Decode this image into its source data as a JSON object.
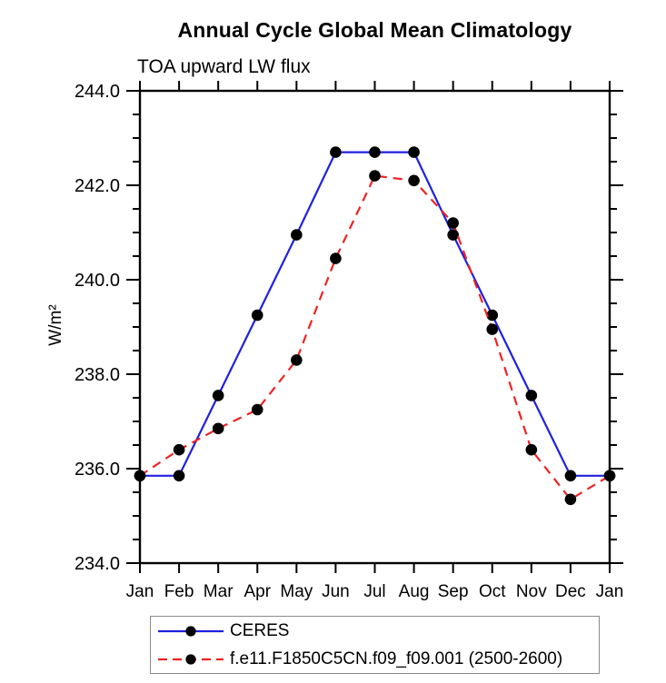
{
  "page": {
    "background": "#ffffff"
  },
  "chart_data": {
    "type": "line",
    "title": "Annual Cycle Global Mean Climatology",
    "subtitle": "TOA upward LW flux",
    "ylabel": "W/m²",
    "x_categories": [
      "Jan",
      "Feb",
      "Mar",
      "Apr",
      "May",
      "Jun",
      "Jul",
      "Aug",
      "Sep",
      "Oct",
      "Nov",
      "Dec",
      "Jan"
    ],
    "y_axis": {
      "min": 234.0,
      "max": 244.0,
      "major_step": 2.0,
      "minor_step": 0.5,
      "tick_labels": [
        "234.0",
        "236.0",
        "238.0",
        "240.0",
        "242.0",
        "244.0"
      ]
    },
    "x_axis": {
      "ticks": "top_and_bottom",
      "minor_ticks": false
    },
    "grid": false,
    "frame_color": "#000000",
    "series": [
      {
        "name": "CERES",
        "color": "#2020e0",
        "line_style": "solid",
        "marker": "filled-circle",
        "marker_color": "#000000",
        "values": [
          235.85,
          235.85,
          237.55,
          239.25,
          240.95,
          242.7,
          242.7,
          242.7,
          240.95,
          239.25,
          237.55,
          235.85,
          235.85
        ]
      },
      {
        "name": "f.e11.F1850C5CN.f09_f09.001 (2500-2600)",
        "color": "#ee2222",
        "line_style": "dashed",
        "marker": "filled-circle",
        "marker_color": "#000000",
        "values": [
          235.85,
          236.4,
          236.85,
          237.25,
          238.3,
          240.45,
          242.2,
          242.1,
          241.2,
          238.95,
          236.4,
          235.35,
          235.85
        ]
      }
    ],
    "legend": {
      "position": "bottom",
      "border_color": "#8a8a8a"
    }
  }
}
